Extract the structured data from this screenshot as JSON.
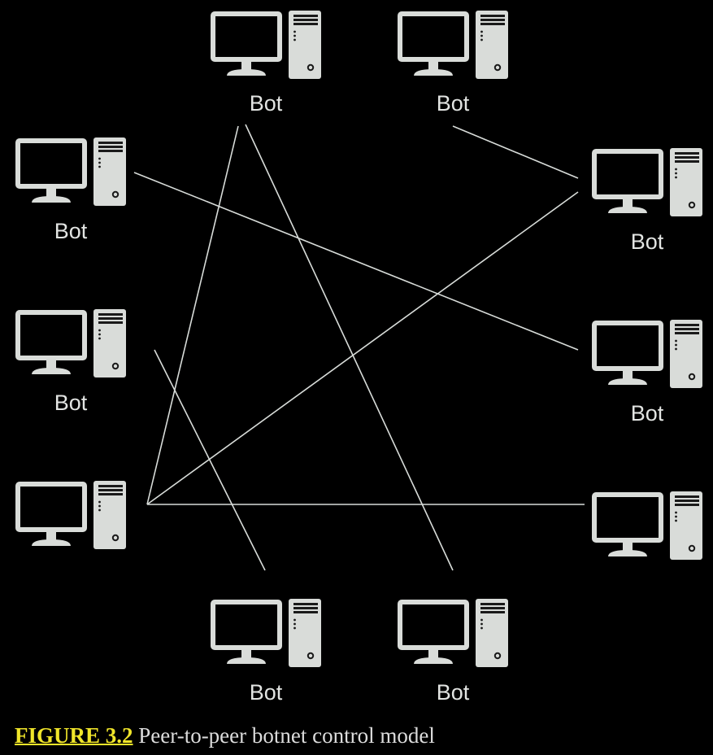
{
  "diagram": {
    "node_icon": "desktop-computer-icon",
    "colors": {
      "background": "#000000",
      "line": "#d8dcd9",
      "icon": "#d9dcd9",
      "label": "#e2e4e2",
      "caption_ref": "#f0e52a",
      "caption_text": "#dcdcdc"
    },
    "nodes": [
      {
        "id": "top-left",
        "label": "Bot"
      },
      {
        "id": "top-right",
        "label": "Bot"
      },
      {
        "id": "upper-left",
        "label": "Bot"
      },
      {
        "id": "middle-left",
        "label": "Bot"
      },
      {
        "id": "lower-left",
        "label": ""
      },
      {
        "id": "upper-right",
        "label": "Bot"
      },
      {
        "id": "middle-right",
        "label": "Bot"
      },
      {
        "id": "lower-right",
        "label": ""
      },
      {
        "id": "bottom-left",
        "label": "Bot"
      },
      {
        "id": "bottom-right",
        "label": "Bot"
      }
    ],
    "links": [
      {
        "from": "top-left",
        "to": "lower-left"
      },
      {
        "from": "top-left",
        "to": "bottom-right"
      },
      {
        "from": "top-right",
        "to": "upper-right"
      },
      {
        "from": "upper-left",
        "to": "middle-right"
      },
      {
        "from": "middle-left",
        "to": "bottom-left"
      },
      {
        "from": "lower-left",
        "to": "upper-right"
      },
      {
        "from": "lower-left",
        "to": "lower-right"
      }
    ]
  },
  "caption": {
    "figure_ref": "FIGURE 3.2",
    "title": "Peer-to-peer botnet control model"
  }
}
